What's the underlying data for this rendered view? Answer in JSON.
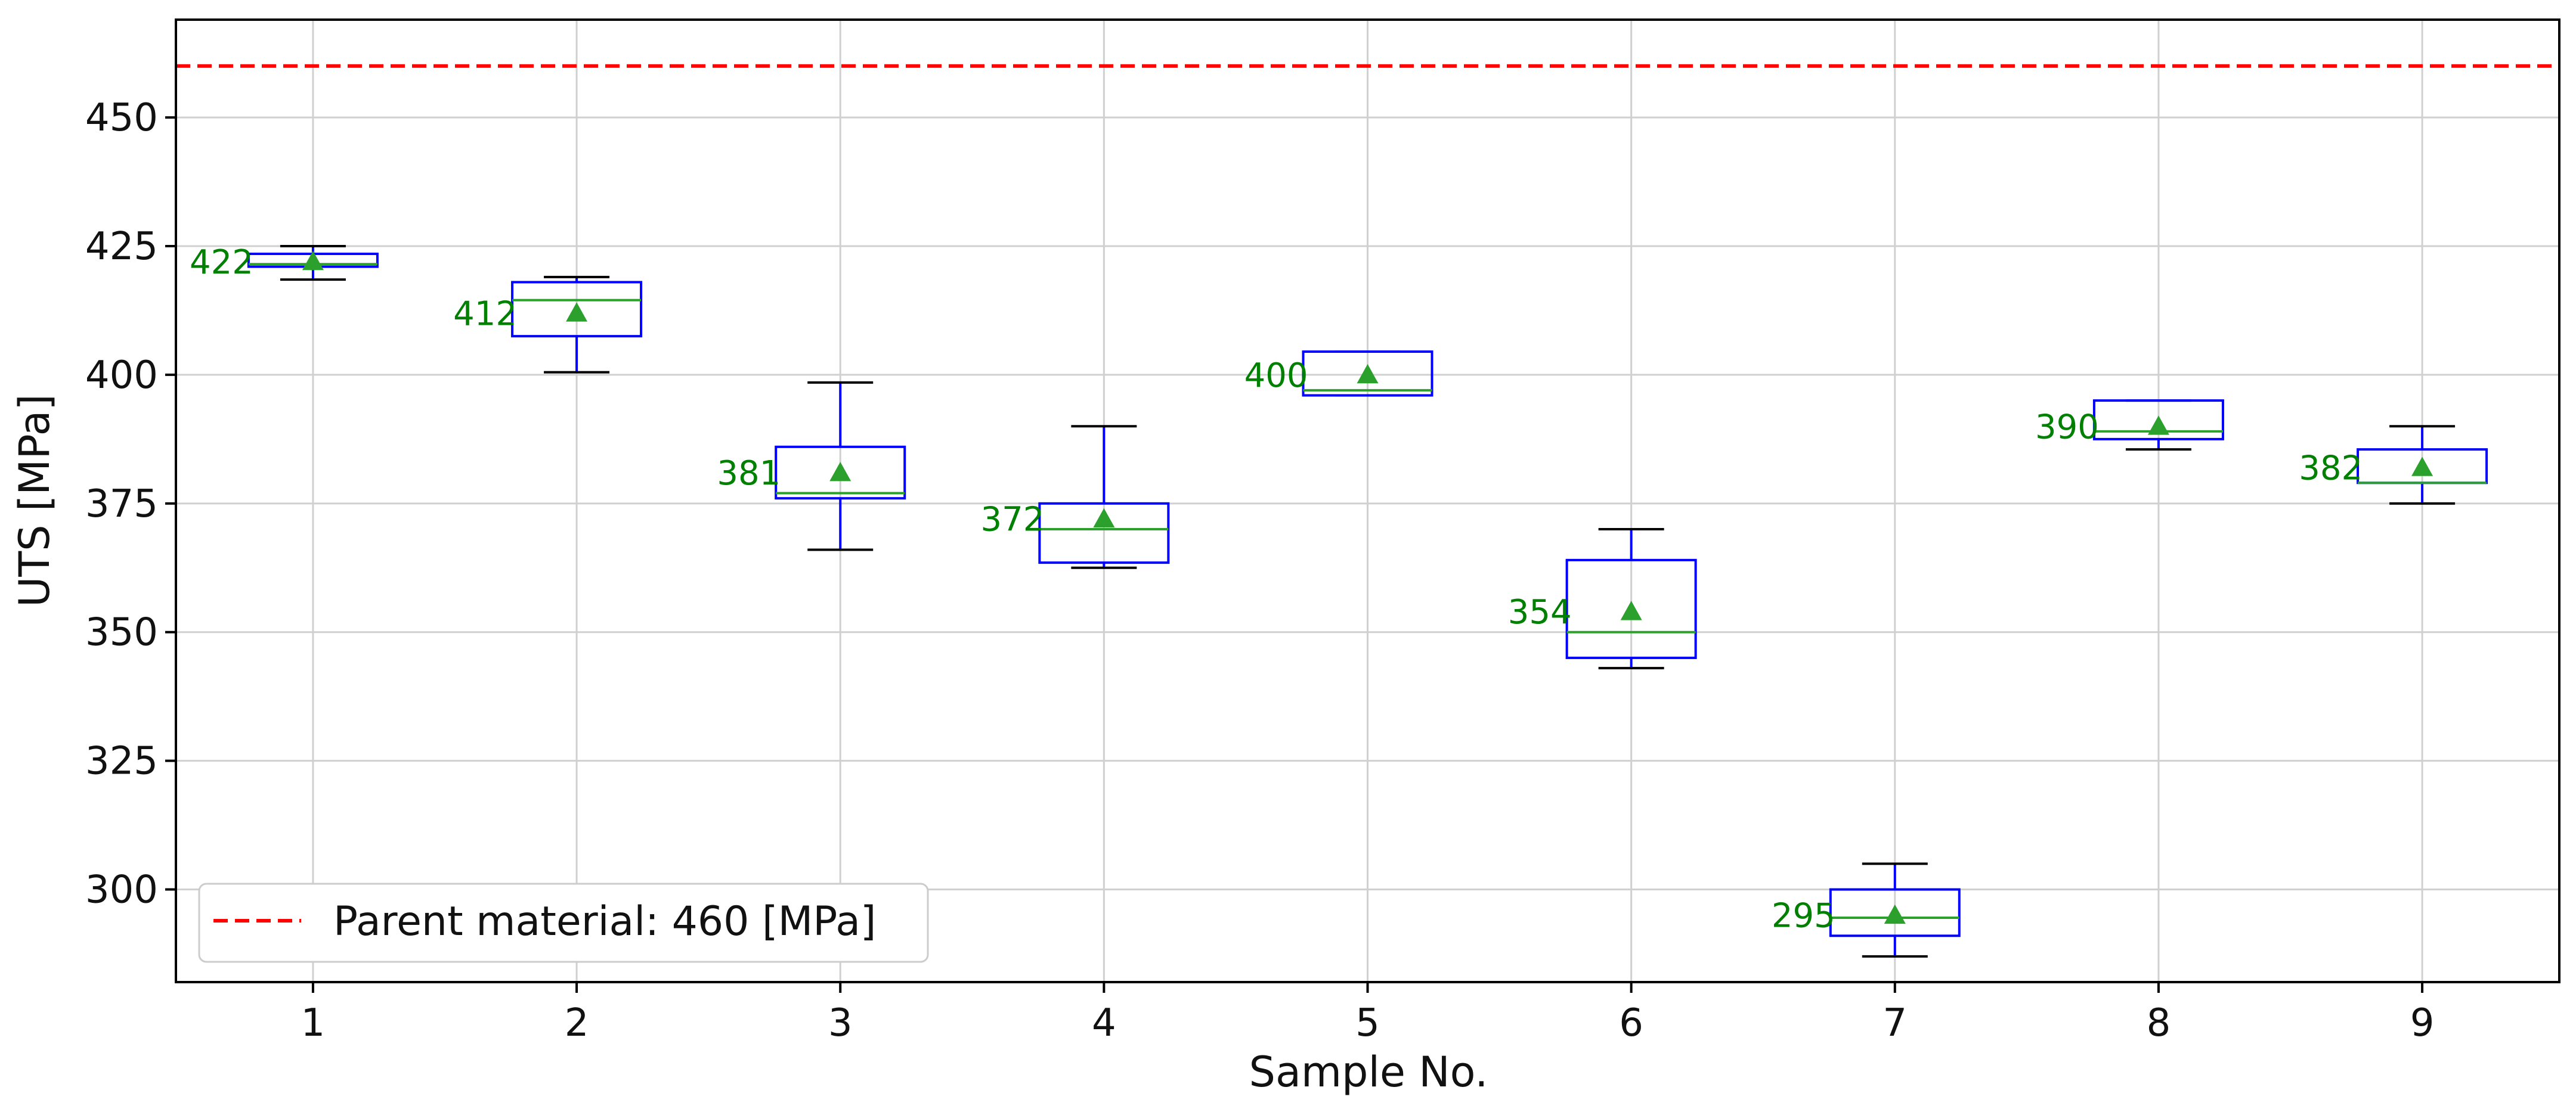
{
  "chart_data": {
    "type": "box",
    "xlabel": "Sample No.",
    "ylabel": "UTS [MPa]",
    "ylim": [
      282,
      469
    ],
    "y_ticks": [
      300,
      325,
      350,
      375,
      400,
      425,
      450
    ],
    "grid": true,
    "legend_position": "bottom-left",
    "reference_line": {
      "label": "Parent material: 460 [MPa]",
      "value": 460,
      "color": "#ff0000",
      "style": "dashed"
    },
    "categories": [
      "1",
      "2",
      "3",
      "4",
      "5",
      "6",
      "7",
      "8",
      "9"
    ],
    "boxes": [
      {
        "whisker_low": 418.5,
        "q1": 421.0,
        "median": 421.5,
        "q3": 423.5,
        "whisker_high": 425.0,
        "mean": 422,
        "mean_label": "422"
      },
      {
        "whisker_low": 400.5,
        "q1": 407.5,
        "median": 414.5,
        "q3": 418.0,
        "whisker_high": 419.0,
        "mean": 412,
        "mean_label": "412"
      },
      {
        "whisker_low": 366.0,
        "q1": 376.0,
        "median": 377.0,
        "q3": 386.0,
        "whisker_high": 398.5,
        "mean": 381,
        "mean_label": "381"
      },
      {
        "whisker_low": 362.5,
        "q1": 363.5,
        "median": 370.0,
        "q3": 375.0,
        "whisker_high": 390.0,
        "mean": 372,
        "mean_label": "372"
      },
      {
        "whisker_low": 396.0,
        "q1": 396.0,
        "median": 397.0,
        "q3": 404.5,
        "whisker_high": 404.5,
        "mean": 400,
        "mean_label": "400"
      },
      {
        "whisker_low": 343.0,
        "q1": 345.0,
        "median": 350.0,
        "q3": 364.0,
        "whisker_high": 370.0,
        "mean": 354,
        "mean_label": "354"
      },
      {
        "whisker_low": 287.0,
        "q1": 291.0,
        "median": 294.5,
        "q3": 300.0,
        "whisker_high": 305.0,
        "mean": 295,
        "mean_label": "295"
      },
      {
        "whisker_low": 385.5,
        "q1": 387.5,
        "median": 389.0,
        "q3": 395.0,
        "whisker_high": 395.0,
        "mean": 390,
        "mean_label": "390"
      },
      {
        "whisker_low": 375.0,
        "q1": 379.0,
        "median": 379.0,
        "q3": 385.5,
        "whisker_high": 390.0,
        "mean": 382,
        "mean_label": "382"
      }
    ],
    "colors": {
      "box": "#0000ff",
      "whisker_cap": "#000000",
      "median": "#2ca02c",
      "mean_marker": "#2ca02c",
      "mean_label": "#008000",
      "grid": "#d0d0d0"
    }
  }
}
